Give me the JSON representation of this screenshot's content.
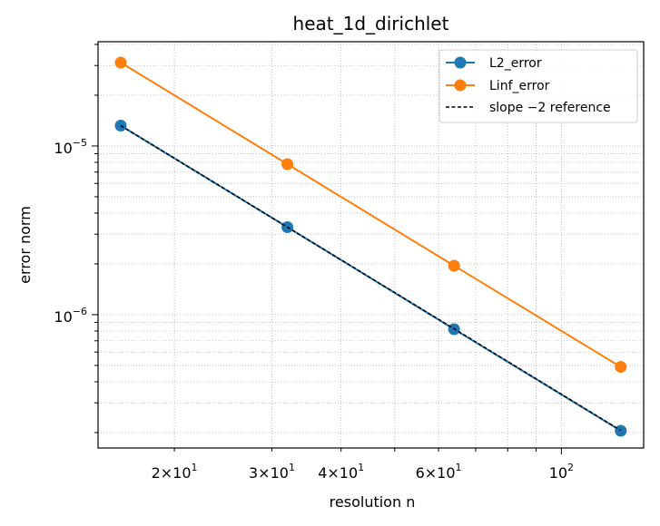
{
  "chart_data": {
    "type": "line",
    "title": "heat_1d_dirichlet",
    "xlabel": "resolution n",
    "ylabel": "error norm",
    "xscale": "log",
    "yscale": "log",
    "xlim": [
      14.56,
      140.8
    ],
    "ylim": [
      1.62e-07,
      4.15e-05
    ],
    "grid": "both (major and minor, dotted)",
    "legend_position": "top-right",
    "x": [
      16,
      32,
      64,
      128
    ],
    "x_ticks": [
      {
        "value": 20,
        "base": "2×10",
        "exp": "1"
      },
      {
        "value": 30,
        "base": "3×10",
        "exp": "1"
      },
      {
        "value": 40,
        "base": "4×10",
        "exp": "1"
      },
      {
        "value": 60,
        "base": "6×10",
        "exp": "1"
      },
      {
        "value": 100,
        "base": "10",
        "exp": "2"
      }
    ],
    "y_ticks": [
      {
        "value": 1e-05,
        "base": "10",
        "exp": "−5"
      },
      {
        "value": 1e-06,
        "base": "10",
        "exp": "−6"
      }
    ],
    "series": [
      {
        "name": "L2_error",
        "color": "#1f77b4",
        "style": "solid-marker",
        "values": [
          1.32e-05,
          3.3e-06,
          8.2e-07,
          2.05e-07
        ]
      },
      {
        "name": "Linf_error",
        "color": "#ff7f0e",
        "style": "solid-marker",
        "values": [
          3.12e-05,
          7.8e-06,
          1.95e-06,
          4.9e-07
        ]
      },
      {
        "name": "slope −2 reference",
        "color": "#000000",
        "style": "dashed",
        "values": [
          1.32e-05,
          3.3e-06,
          8.25e-07,
          2.06e-07
        ]
      }
    ]
  }
}
